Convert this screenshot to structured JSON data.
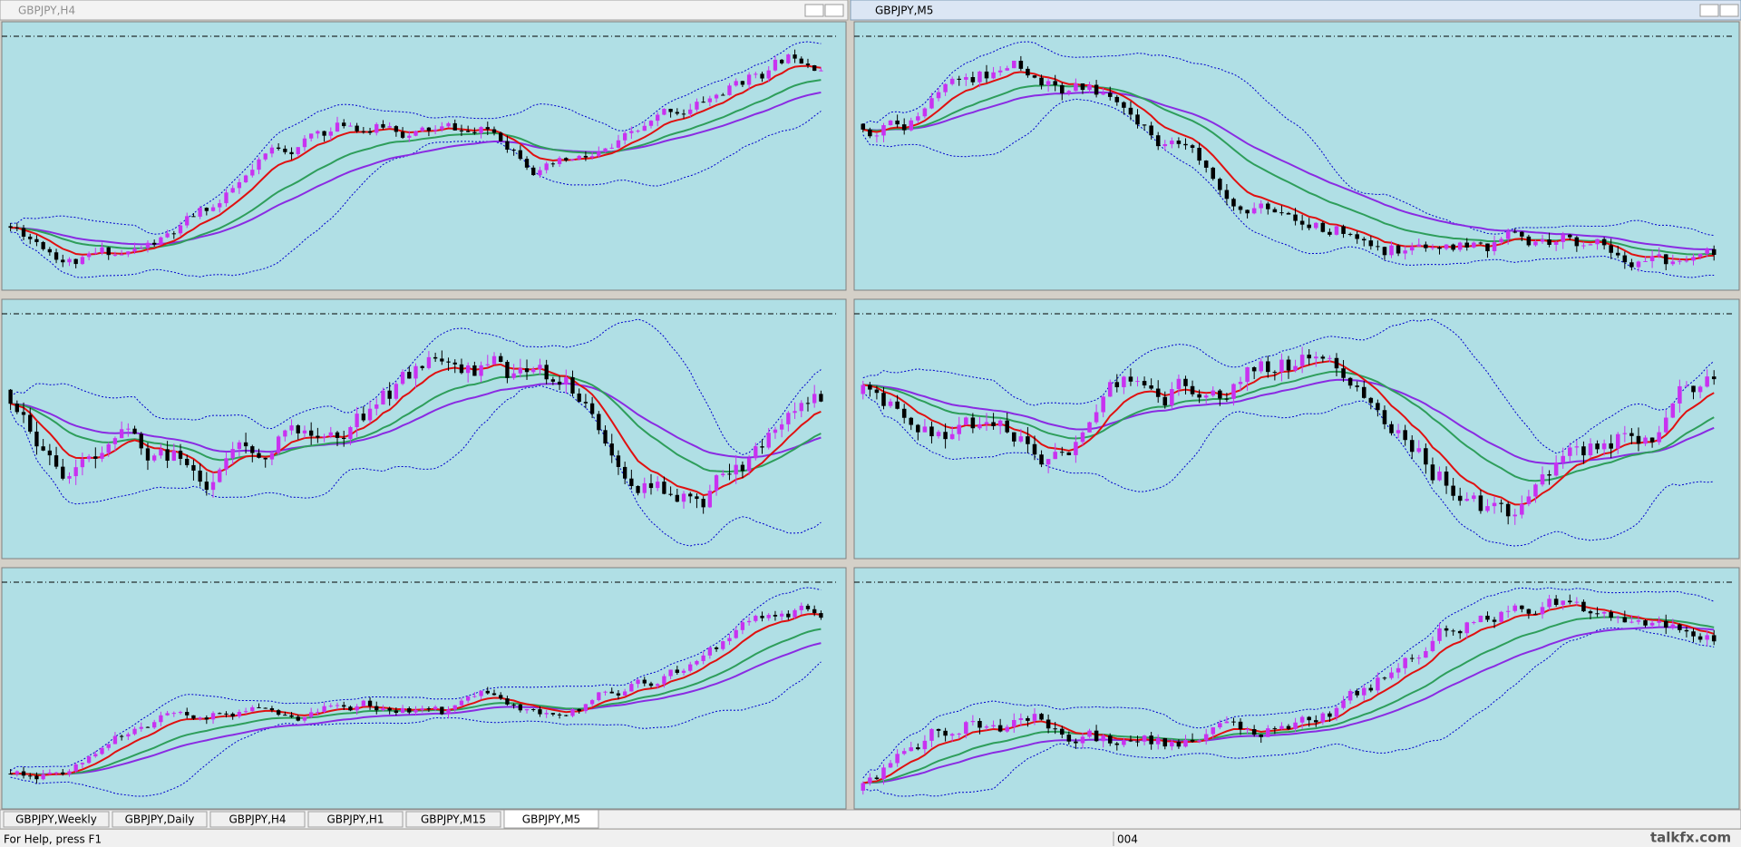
{
  "windows": [
    {
      "title": "GBPJPY,H4"
    },
    {
      "title": "GBPJPY,M5"
    }
  ],
  "tabs": [
    "GBPJPY,Weekly",
    "GBPJPY,Daily",
    "GBPJPY,H4",
    "GBPJPY,H1",
    "GBPJPY,M15",
    "GBPJPY,M5"
  ],
  "status": {
    "help": "For Help, press F1",
    "field": "004",
    "watermark": "talkfx.com"
  }
}
